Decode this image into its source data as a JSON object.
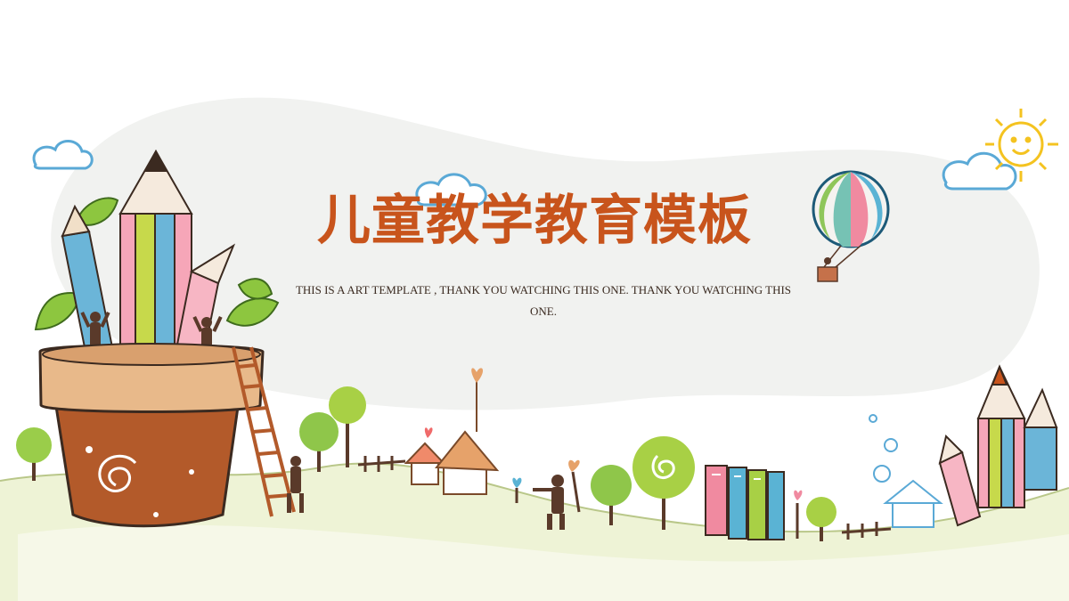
{
  "slide": {
    "title": "儿童教学教育模板",
    "subtitle": "THIS IS A ART TEMPLATE , THANK YOU WATCHING THIS ONE. THANK YOU WATCHING THIS ONE."
  },
  "colors": {
    "title": "#c8541c",
    "subtitle": "#3a2a20",
    "background_blob": "#f1f2f0",
    "ground": "#eef3d6",
    "pot": "#b35a2a"
  },
  "illustrations": [
    "pencil-pot-illustration",
    "cloud-icon",
    "sun-icon",
    "hot-air-balloon-icon",
    "village-landscape-illustration",
    "books-icon",
    "pencils-group-illustration"
  ]
}
